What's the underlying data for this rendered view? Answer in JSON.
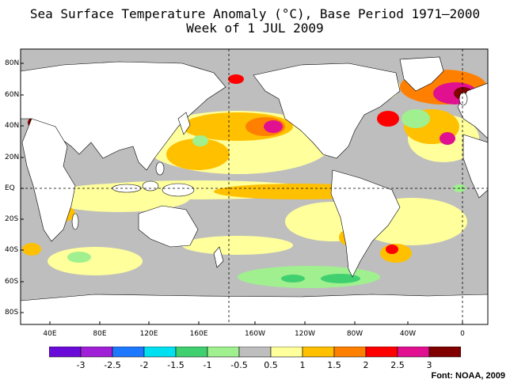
{
  "title_line1": "Sea Surface Temperature Anomaly (°C), Base Period 1971–2000",
  "title_line2": "Week of  1 JUL 2009",
  "lat_labels": [
    "80N",
    "60N",
    "40N",
    "20N",
    "EQ",
    "20S",
    "40S",
    "60S",
    "80S"
  ],
  "lon_labels": [
    "40E",
    "80E",
    "120E",
    "160E",
    "160W",
    "120W",
    "80W",
    "40W",
    "0"
  ],
  "legend": {
    "colors": [
      "#6a0ad8",
      "#a020d8",
      "#1e78ff",
      "#00e0f0",
      "#40d070",
      "#a0f090",
      "#bebebe",
      "#ffff9c",
      "#ffc000",
      "#ff8000",
      "#ff0000",
      "#e01090",
      "#800000"
    ],
    "labels": [
      "-3",
      "-2.5",
      "-2",
      "-1.5",
      "-1",
      "-0.5",
      "0.5",
      "1",
      "1.5",
      "2",
      "2.5",
      "3"
    ]
  },
  "credit": "Font: NOAA, 2009"
}
